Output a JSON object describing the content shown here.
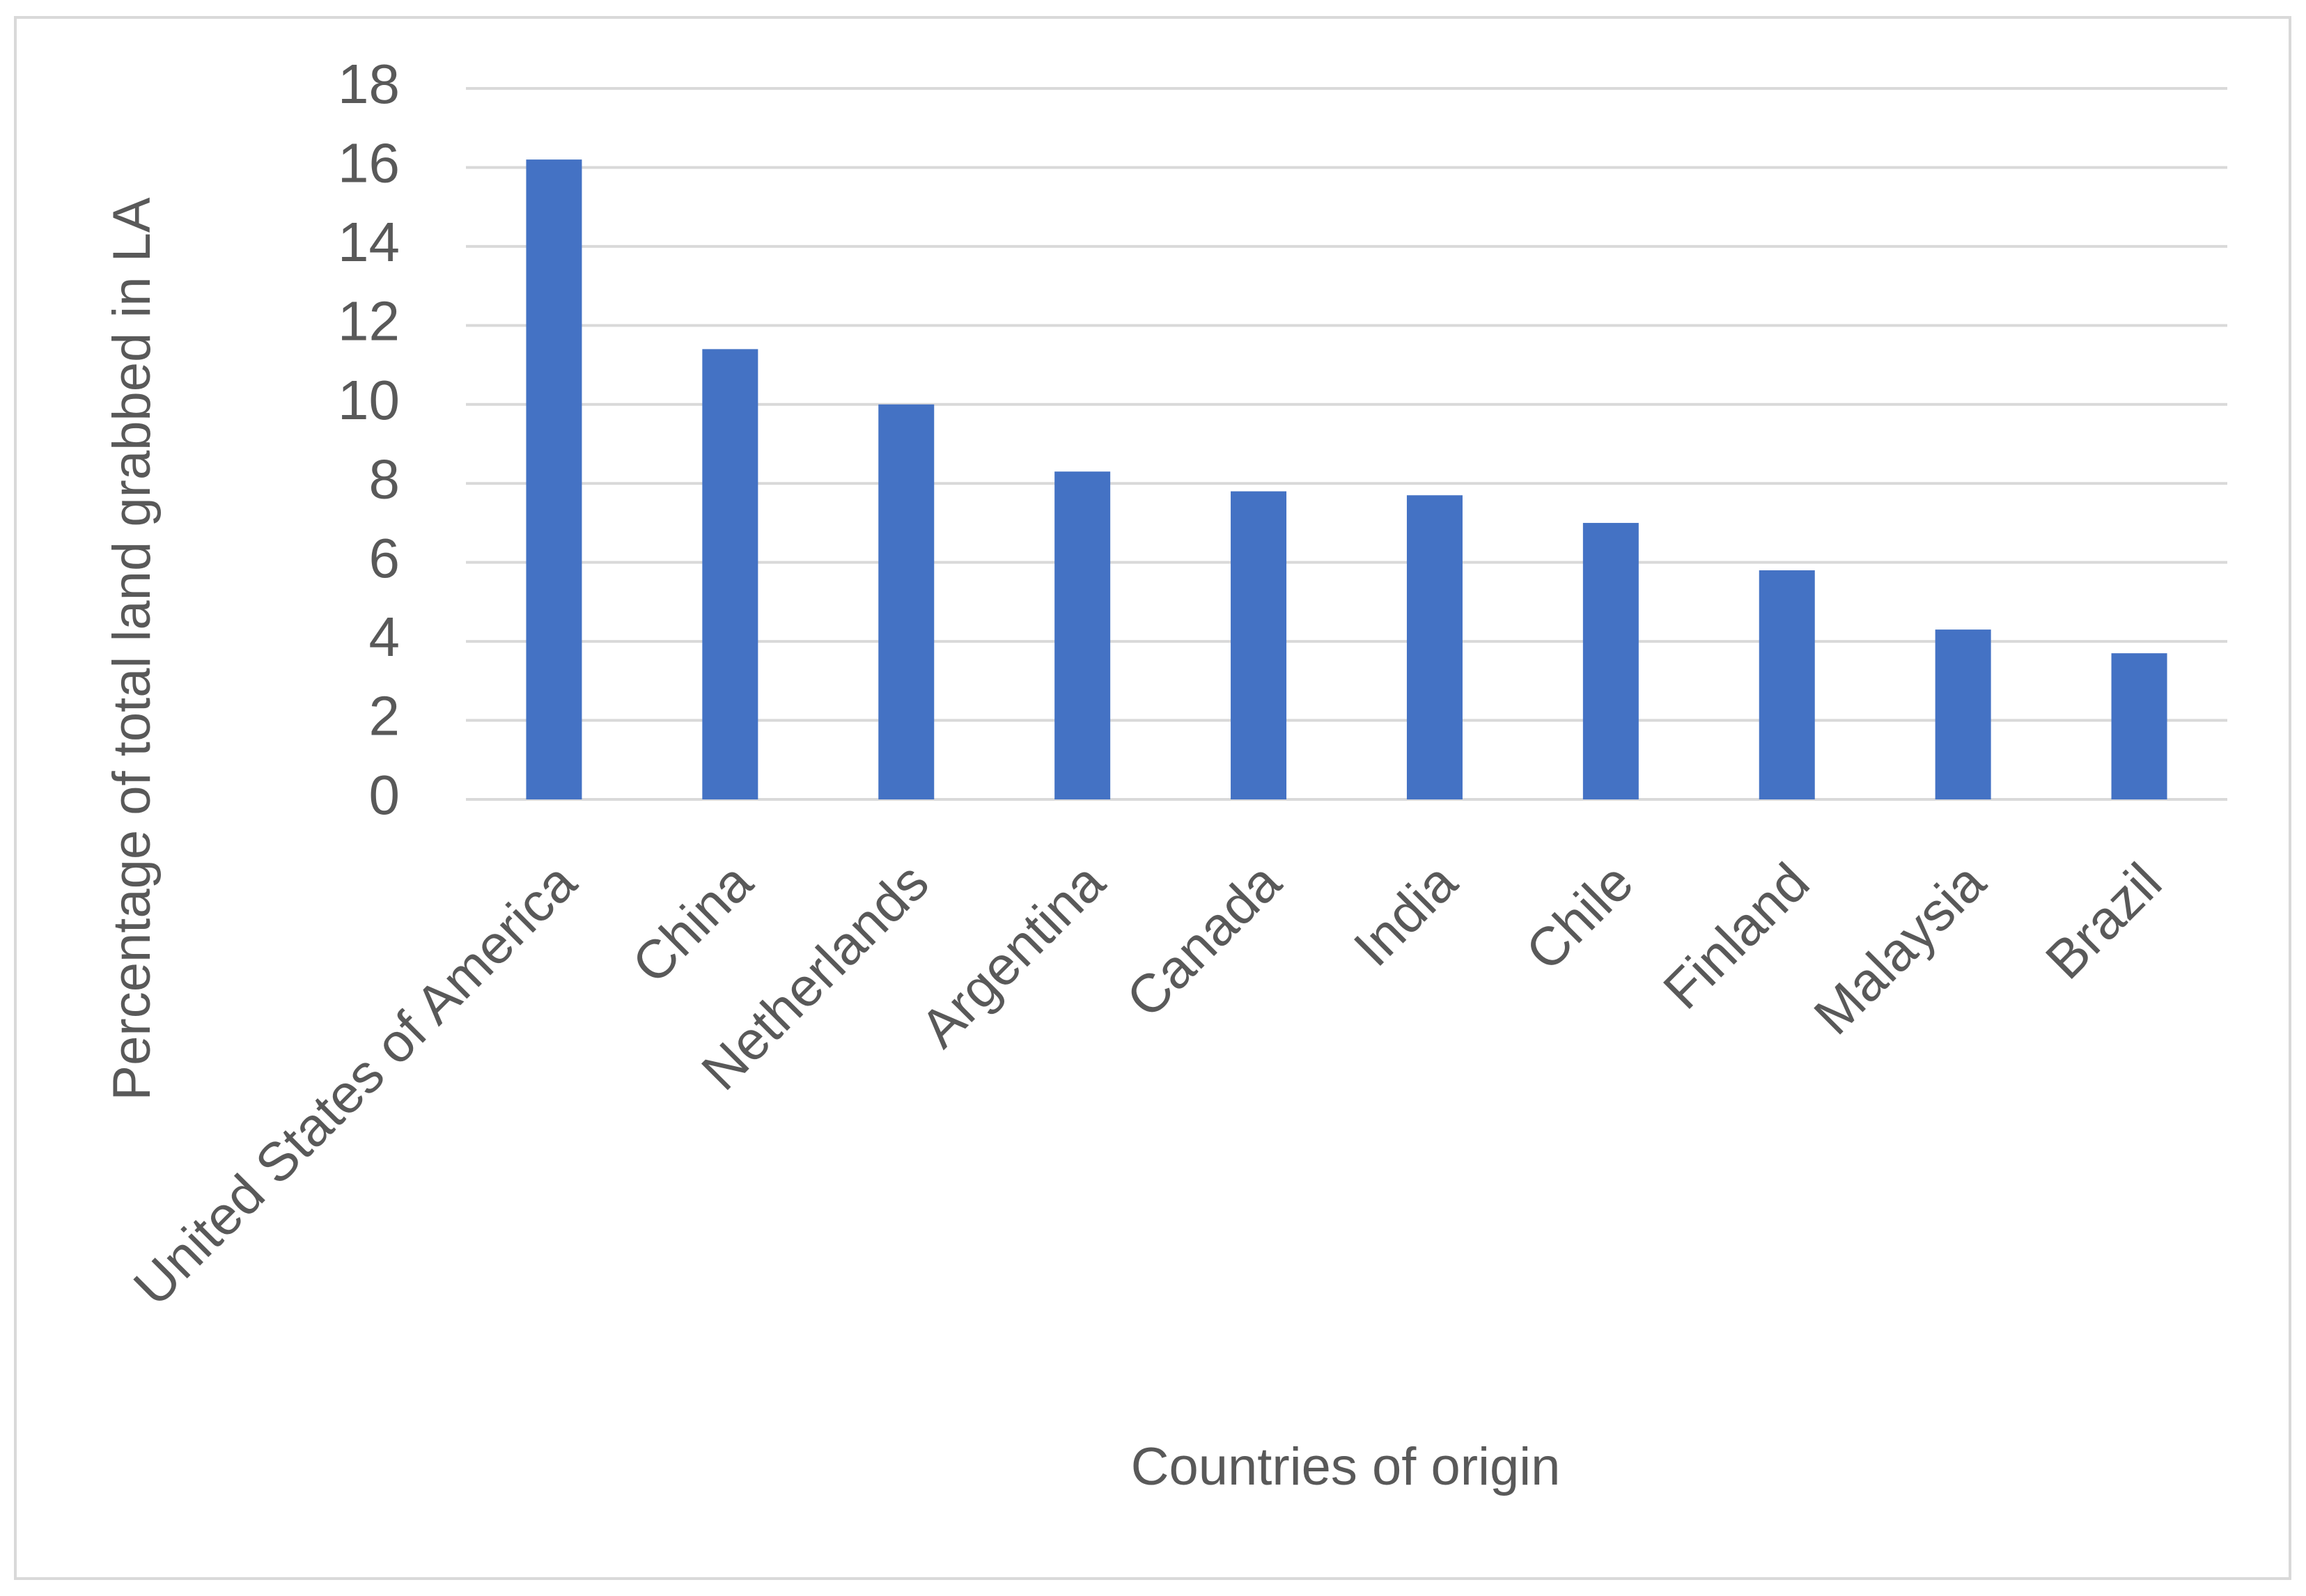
{
  "chart_data": {
    "type": "bar",
    "x_label": "Countries of origin",
    "y_label": "Percentage of total land grabbed in LA",
    "categories": [
      "United States of America",
      "China",
      "Netherlands",
      "Argentina",
      "Canada",
      "India",
      "Chile",
      "Finland",
      "Malaysia",
      "Brazil"
    ],
    "values": [
      16.2,
      11.4,
      10.0,
      8.3,
      7.8,
      7.7,
      7.0,
      5.8,
      4.3,
      3.7
    ],
    "color": "#4472c4",
    "ylim": [
      0,
      18
    ],
    "yticks": [
      0,
      2,
      4,
      6,
      8,
      10,
      12,
      14,
      16,
      18
    ],
    "grid": true
  }
}
